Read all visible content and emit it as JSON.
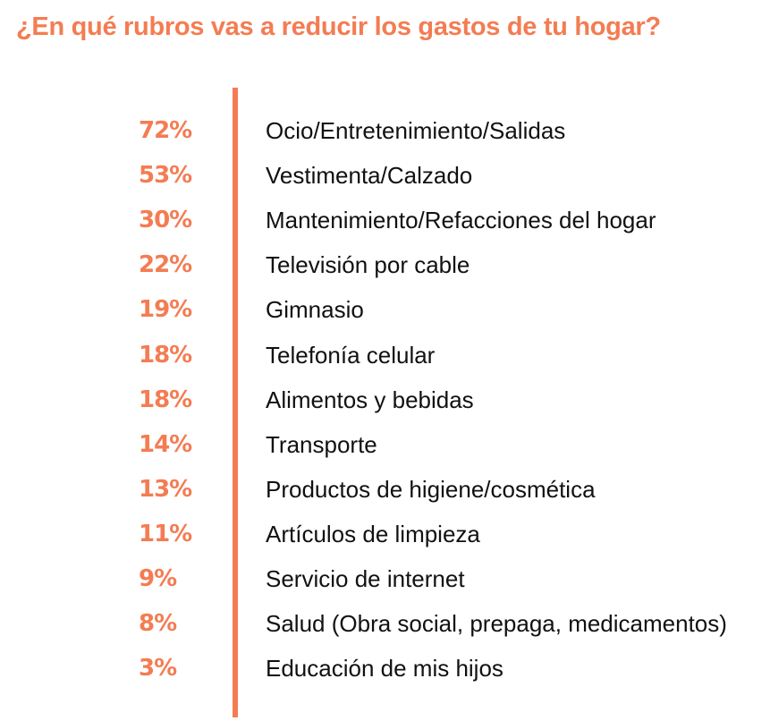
{
  "chart_data": {
    "type": "table",
    "title": "¿En qué rubros vas a reducir los gastos de tu hogar?",
    "accent_color": "#F47C52",
    "rows": [
      {
        "value": "72%",
        "label": "Ocio/Entretenimiento/Salidas"
      },
      {
        "value": "53%",
        "label": "Vestimenta/Calzado"
      },
      {
        "value": "30%",
        "label": "Mantenimiento/Refacciones del hogar"
      },
      {
        "value": "22%",
        "label": "Televisión por cable"
      },
      {
        "value": "19%",
        "label": "Gimnasio"
      },
      {
        "value": "18%",
        "label": "Telefonía celular"
      },
      {
        "value": "18%",
        "label": "Alimentos y bebidas"
      },
      {
        "value": "14%",
        "label": "Transporte"
      },
      {
        "value": "13%",
        "label": "Productos de higiene/cosmética"
      },
      {
        "value": "11%",
        "label": "Artículos de limpieza"
      },
      {
        "value": "9%",
        "label": "Servicio de internet"
      },
      {
        "value": "8%",
        "label": "Salud (Obra social, prepaga, medicamentos)"
      },
      {
        "value": "3%",
        "label": "Educación de mis hijos"
      }
    ]
  }
}
